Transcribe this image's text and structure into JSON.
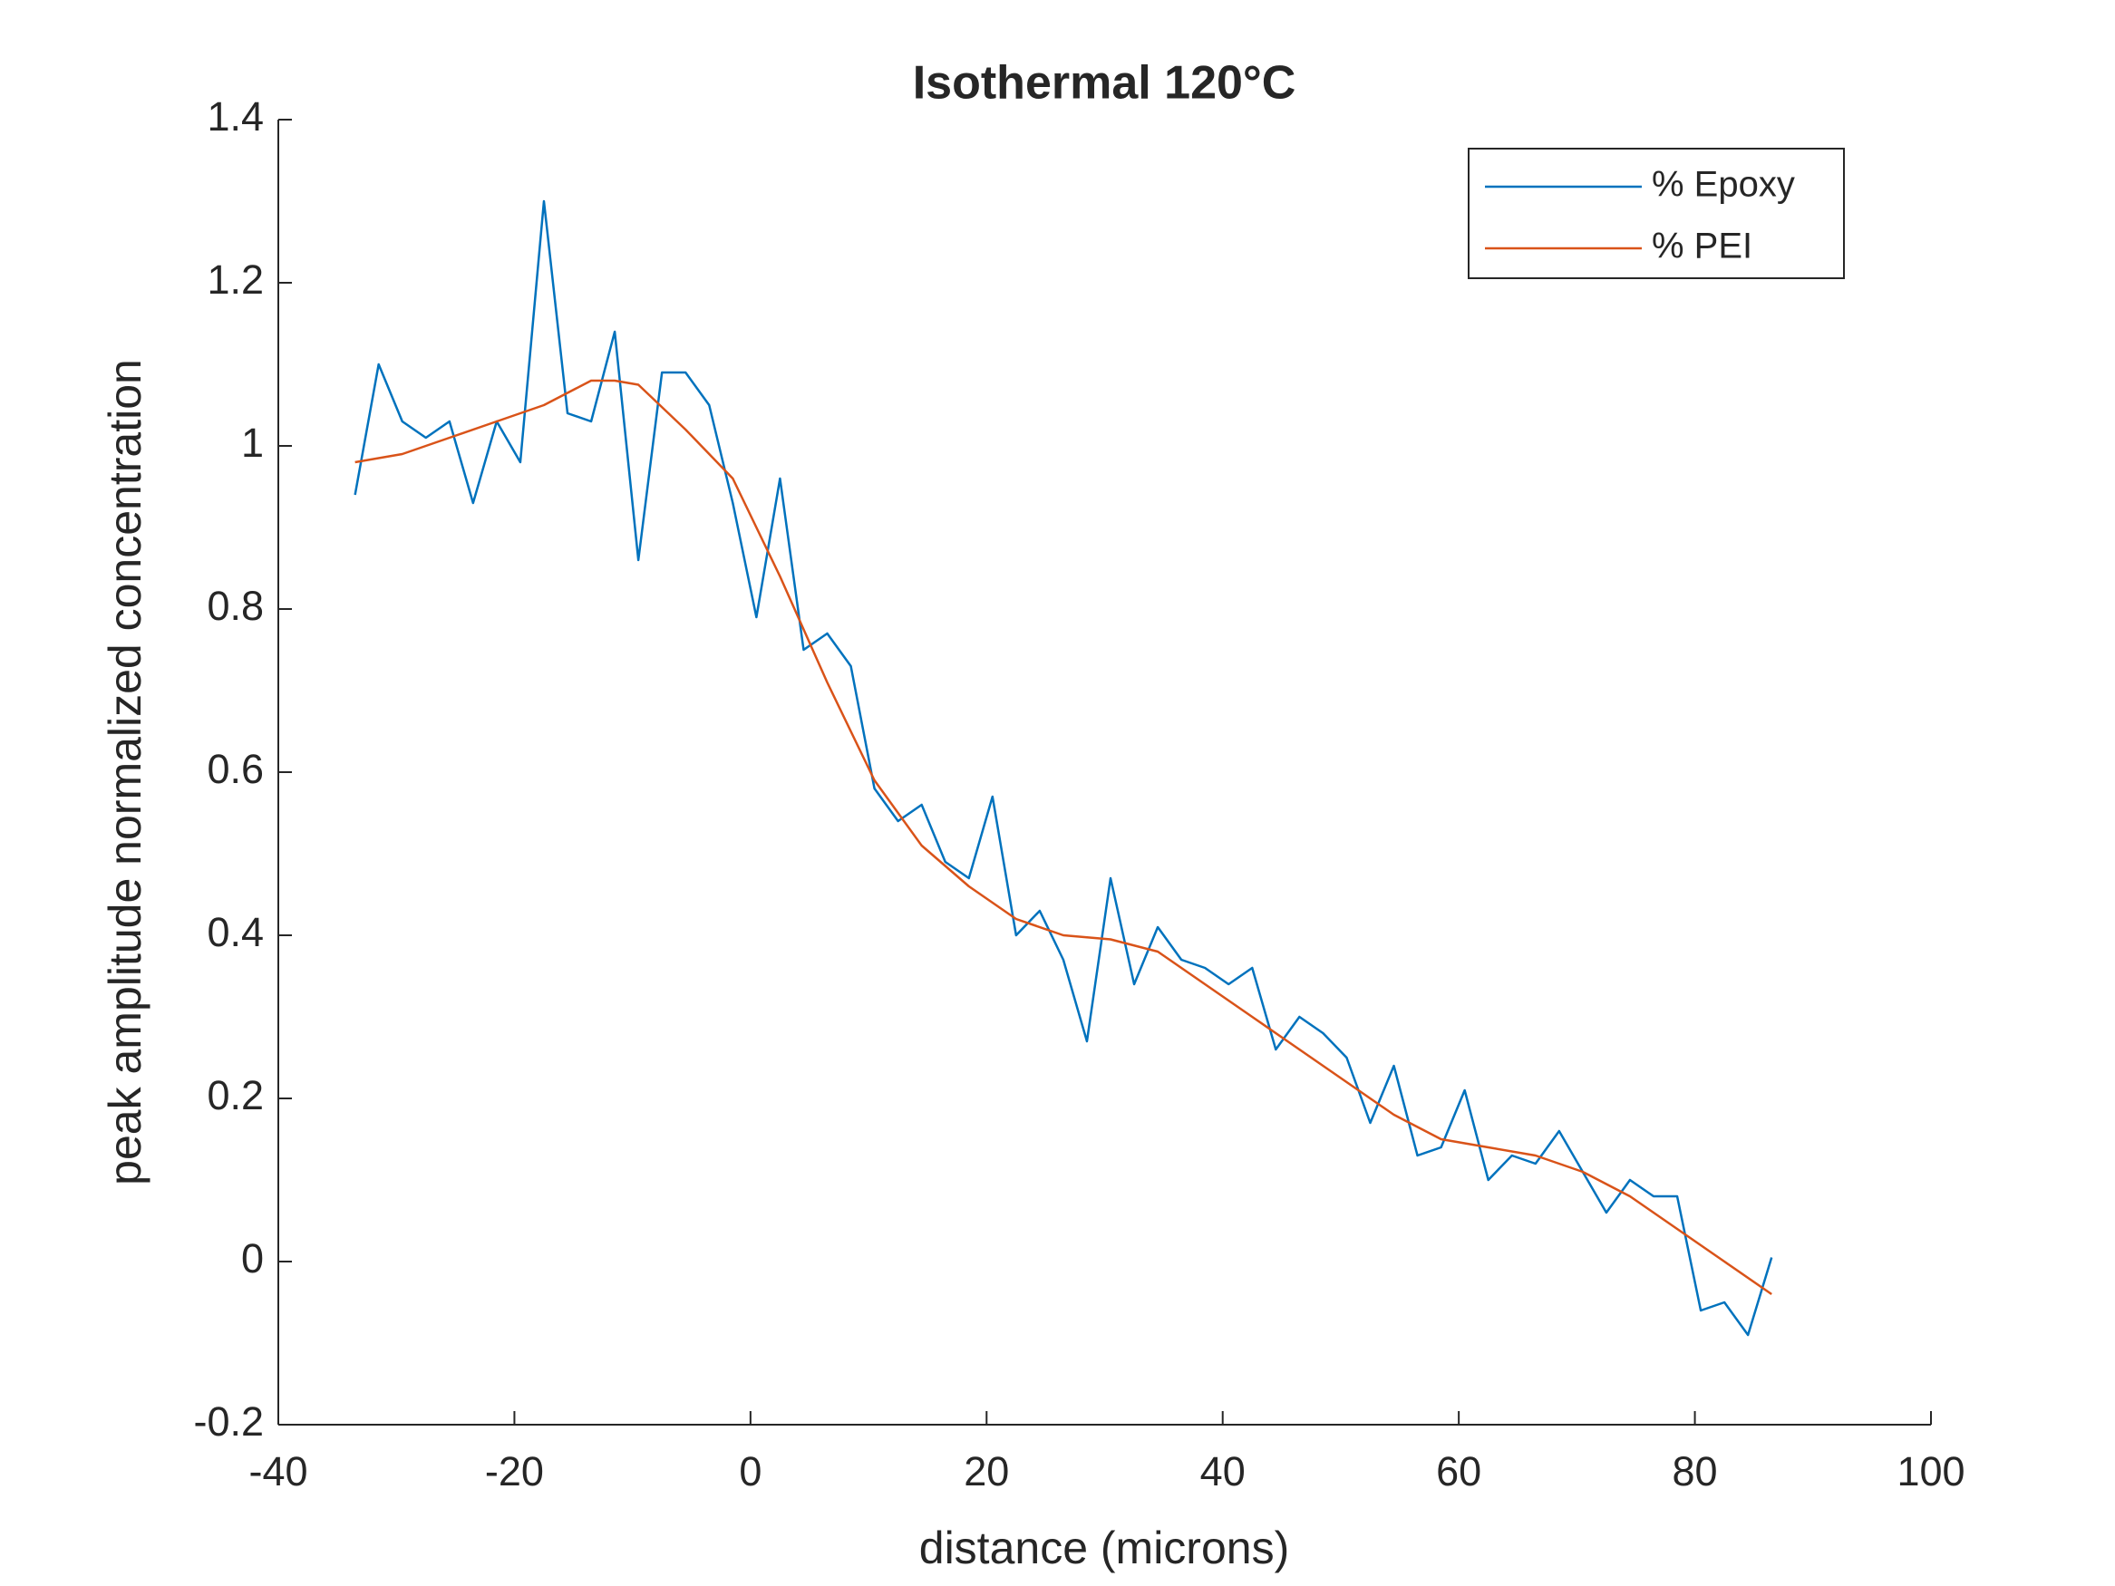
{
  "chart_data": {
    "type": "line",
    "title": "Isothermal 120°C",
    "x_label": "distance (microns)",
    "y_label": "peak amplitude normalized concentration",
    "xlim": [
      -40,
      100
    ],
    "xticks": [
      -40,
      -20,
      0,
      20,
      40,
      60,
      80,
      100
    ],
    "ylim": [
      -0.2,
      1.4
    ],
    "yticks": [
      -0.2,
      0,
      0.2,
      0.4,
      0.6,
      0.8,
      1,
      1.2,
      1.4
    ],
    "legend": "northeast",
    "series": [
      {
        "name": "% Epoxy",
        "color": "#0072bd",
        "x": [
          -33.5,
          -31.5,
          -29.5,
          -27.5,
          -25.5,
          -23.5,
          -21.5,
          -19.5,
          -17.5,
          -15.5,
          -13.5,
          -11.5,
          -9.5,
          -7.5,
          -5.5,
          -3.5,
          -1.5,
          0.5,
          2.5,
          4.5,
          6.5,
          8.5,
          10.5,
          12.5,
          14.5,
          16.5,
          18.5,
          20.5,
          22.5,
          24.5,
          26.5,
          28.5,
          30.5,
          32.5,
          34.5,
          36.5,
          38.5,
          40.5,
          42.5,
          44.5,
          46.5,
          48.5,
          50.5,
          52.5,
          54.5,
          56.5,
          58.5,
          60.5,
          62.5,
          64.5,
          66.5,
          68.5,
          70.5,
          72.5,
          74.5,
          76.5,
          78.5,
          80.5,
          82.5,
          84.5,
          86.5
        ],
        "values": [
          0.94,
          1.1,
          1.03,
          1.01,
          1.03,
          0.93,
          1.03,
          0.98,
          1.3,
          1.04,
          1.03,
          1.14,
          0.86,
          1.09,
          1.09,
          1.05,
          0.93,
          0.79,
          0.96,
          0.75,
          0.77,
          0.73,
          0.58,
          0.54,
          0.56,
          0.49,
          0.47,
          0.57,
          0.4,
          0.43,
          0.37,
          0.27,
          0.47,
          0.34,
          0.41,
          0.37,
          0.36,
          0.34,
          0.36,
          0.26,
          0.3,
          0.28,
          0.25,
          0.17,
          0.24,
          0.13,
          0.14,
          0.21,
          0.1,
          0.13,
          0.12,
          0.16,
          0.11,
          0.06,
          0.1,
          0.08,
          0.08,
          -0.06,
          -0.05,
          -0.09,
          0.005
        ]
      },
      {
        "name": "% PEI",
        "color": "#d95319",
        "x": [
          -33.5,
          -29.5,
          -25.5,
          -21.5,
          -17.5,
          -13.5,
          -11.5,
          -9.5,
          -5.5,
          -1.5,
          2.5,
          6.5,
          10.5,
          14.5,
          18.5,
          22.5,
          26.5,
          30.5,
          34.5,
          38.5,
          42.5,
          46.5,
          50.5,
          54.5,
          58.5,
          62.5,
          66.5,
          70.5,
          74.5,
          78.5,
          82.5,
          86.5
        ],
        "values": [
          0.98,
          0.99,
          1.01,
          1.03,
          1.05,
          1.08,
          1.08,
          1.075,
          1.02,
          0.96,
          0.84,
          0.71,
          0.59,
          0.51,
          0.46,
          0.42,
          0.4,
          0.395,
          0.38,
          0.34,
          0.3,
          0.26,
          0.22,
          0.18,
          0.15,
          0.14,
          0.13,
          0.11,
          0.08,
          0.04,
          0.0,
          -0.04
        ]
      }
    ]
  }
}
